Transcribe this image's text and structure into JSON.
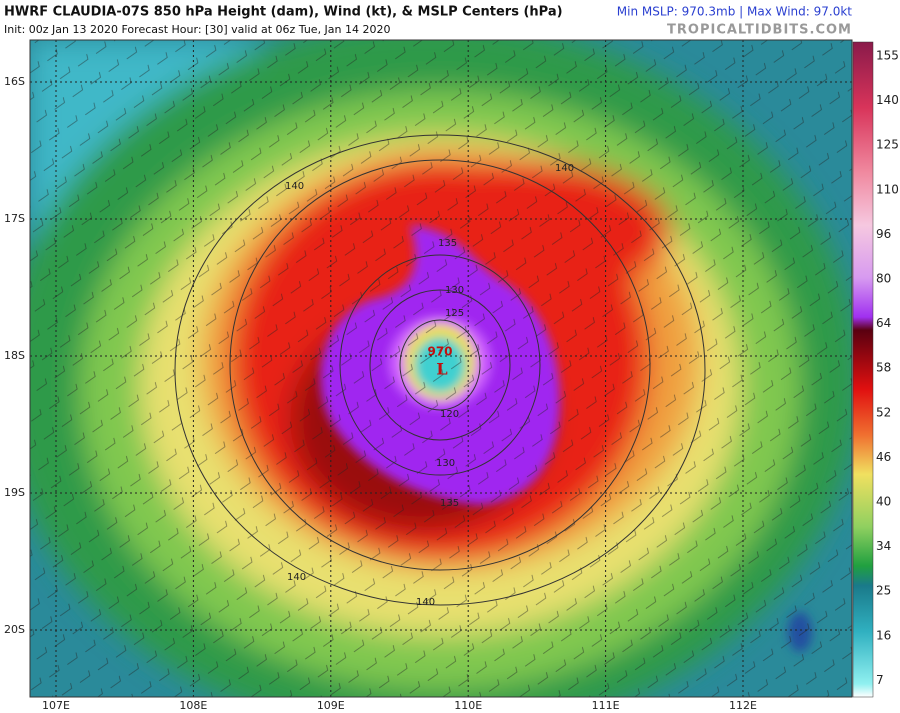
{
  "header": {
    "title": "HWRF CLAUDIA-07S 850 hPa Height (dam), Wind (kt), & MSLP Centers (hPa)",
    "subtitle": "Init: 00z Jan 13 2020   Forecast Hour: [30]   valid at 06z Tue, Jan 14 2020",
    "stats": "Min MSLP: 970.3mb | Max Wind: 97.0kt",
    "source": "TROPICALTIDBITS.COM"
  },
  "map": {
    "lat_labels": [
      "16S",
      "17S",
      "18S",
      "19S",
      "20S"
    ],
    "lon_labels": [
      "107E",
      "108E",
      "109E",
      "110E",
      "111E",
      "112E"
    ],
    "contour_labels": [
      "140",
      "140",
      "135",
      "130",
      "125",
      "120",
      "130",
      "135",
      "140",
      "140"
    ],
    "center": {
      "pressure": "970",
      "symbol": "L"
    }
  },
  "colorbar": {
    "ticks": [
      155,
      140,
      125,
      110,
      96,
      80,
      64,
      58,
      52,
      46,
      40,
      34,
      25,
      16,
      7
    ]
  }
}
